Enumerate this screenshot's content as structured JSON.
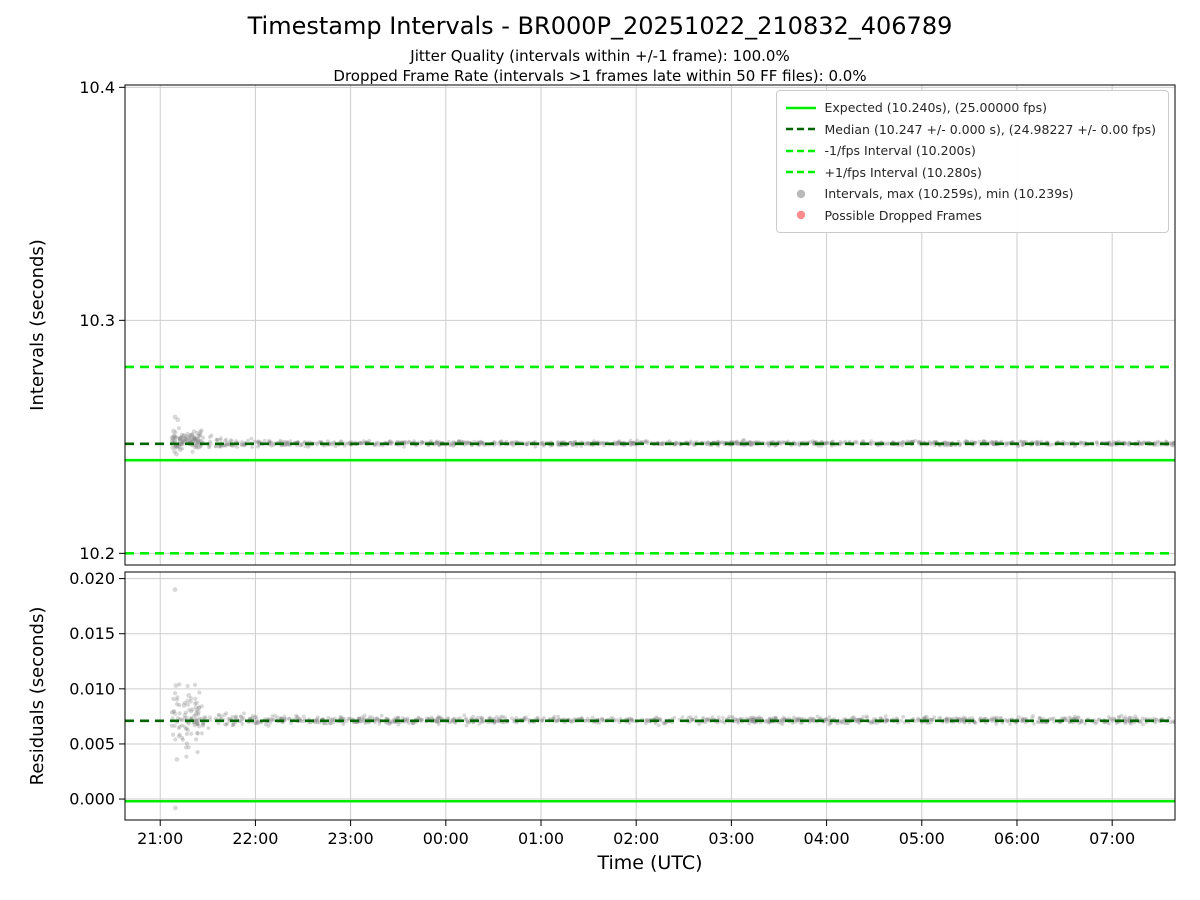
{
  "figure": {
    "title": "Timestamp Intervals - BR000P_20251022_210832_406789",
    "subtitle_line1": "Jitter Quality (intervals within +/-1 frame): 100.0%",
    "subtitle_line2": "Dropped Frame Rate (intervals >1 frames late within 50 FF files): 0.0%",
    "xlabel": "Time (UTC)"
  },
  "colors": {
    "bright_green": "#00ee00",
    "dark_green": "#006400",
    "scatter_gray": "#8a8a8a",
    "dropped_red": "#ff4040",
    "grid": "#cdcdcd",
    "axis": "#000000"
  },
  "legend": {
    "items": [
      {
        "name": "expected",
        "marker": "line-solid",
        "color_key": "bright_green",
        "label": "Expected (10.240s), (25.00000 fps)"
      },
      {
        "name": "median",
        "marker": "line-dashed",
        "color_key": "dark_green",
        "label": "Median (10.247 +/- 0.000 s), (24.98227 +/- 0.00 fps)"
      },
      {
        "name": "minus-1fps",
        "marker": "line-dashed",
        "color_key": "bright_green",
        "label": "-1/fps Interval (10.200s)"
      },
      {
        "name": "plus-1fps",
        "marker": "line-dashed",
        "color_key": "bright_green",
        "label": "+1/fps Interval (10.280s)"
      },
      {
        "name": "intervals",
        "marker": "dot",
        "color_key": "scatter_gray",
        "label": "Intervals, max (10.259s), min (10.239s)"
      },
      {
        "name": "dropped-frames",
        "marker": "dot",
        "color_key": "dropped_red",
        "label": "Possible Dropped Frames"
      }
    ]
  },
  "chart_data": [
    {
      "id": "intervals",
      "type": "scatter",
      "ylabel": "Intervals (seconds)",
      "ylim": [
        10.195,
        10.401
      ],
      "yticks": [
        10.2,
        10.3,
        10.4
      ],
      "ytick_labels": [
        "10.2",
        "10.3",
        "10.4"
      ],
      "x_hours_domain": [
        20.63,
        31.66
      ],
      "xticks_hours": [
        21,
        22,
        23,
        24,
        25,
        26,
        27,
        28,
        29,
        30,
        31
      ],
      "xtick_labels": [
        "21:00",
        "22:00",
        "23:00",
        "00:00",
        "01:00",
        "02:00",
        "03:00",
        "04:00",
        "05:00",
        "06:00",
        "07:00"
      ],
      "grid": true,
      "lines": [
        {
          "name": "expected",
          "y": 10.24,
          "style": "solid",
          "color_key": "bright_green",
          "on_top": false
        },
        {
          "name": "minus_1fps",
          "y": 10.2,
          "style": "dashed",
          "color_key": "bright_green",
          "on_top": false
        },
        {
          "name": "plus_1fps",
          "y": 10.28,
          "style": "dashed",
          "color_key": "bright_green",
          "on_top": false
        },
        {
          "name": "median",
          "y": 10.247,
          "style": "dashed",
          "color_key": "dark_green",
          "on_top": true
        }
      ],
      "scatter": {
        "band": {
          "x_start": 21.17,
          "x_end": 31.66,
          "center": 10.2472,
          "sigma": 0.00045,
          "n": 1100
        },
        "cluster": {
          "x_start": 21.12,
          "x_end": 21.45,
          "center": 10.2487,
          "sigma": 0.002,
          "n": 85,
          "min": 10.2398,
          "max": 10.2568
        },
        "outliers": [
          [
            21.155,
            10.2585
          ],
          [
            21.185,
            10.2573
          ],
          [
            21.15,
            10.2437
          ],
          [
            21.17,
            10.2426
          ],
          [
            21.21,
            10.2445
          ],
          [
            21.14,
            10.2525
          ],
          [
            21.25,
            10.2505
          ],
          [
            21.3,
            10.2495
          ]
        ]
      },
      "stats": {
        "expected_interval_s": 10.24,
        "expected_fps": 25.0,
        "median_interval_s": 10.247,
        "median_fps": 24.98227,
        "max_interval_s": 10.259,
        "min_interval_s": 10.239,
        "jitter_quality_pct": 100.0,
        "dropped_frame_rate_pct": 0.0
      }
    },
    {
      "id": "residuals",
      "type": "scatter",
      "ylabel": "Residuals (seconds)",
      "ylim": [
        -0.0019,
        0.0206
      ],
      "yticks": [
        0.0,
        0.005,
        0.01,
        0.015,
        0.02
      ],
      "ytick_labels": [
        "0.000",
        "0.005",
        "0.010",
        "0.015",
        "0.020"
      ],
      "grid": true,
      "lines": [
        {
          "name": "expected_zero",
          "y": -0.0002,
          "style": "solid",
          "color_key": "bright_green",
          "on_top": false
        },
        {
          "name": "median_residual",
          "y": 0.0071,
          "style": "dashed",
          "color_key": "dark_green",
          "on_top": true
        }
      ],
      "scatter": {
        "band": {
          "x_start": 21.17,
          "x_end": 31.66,
          "center": 0.00715,
          "sigma": 0.00015,
          "n": 1100
        },
        "cluster": {
          "x_start": 21.12,
          "x_end": 21.45,
          "center": 0.0072,
          "sigma": 0.0015,
          "n": 70,
          "min": 0.0036,
          "max": 0.0104
        },
        "outliers": [
          [
            21.155,
            0.019
          ],
          [
            21.165,
            0.0103
          ],
          [
            21.175,
            0.0036
          ],
          [
            21.16,
            -0.0008
          ],
          [
            21.3,
            0.0094
          ],
          [
            21.25,
            0.0085
          ],
          [
            21.4,
            0.0079
          ]
        ]
      }
    }
  ]
}
